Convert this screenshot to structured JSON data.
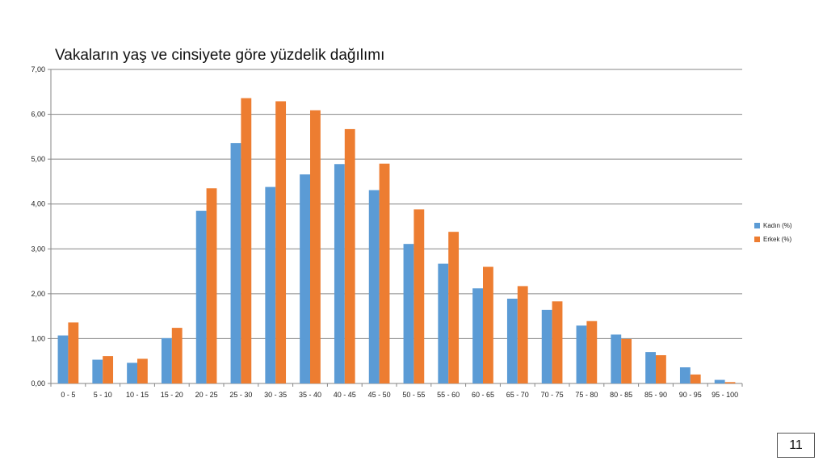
{
  "slide": {
    "page_number": "11"
  },
  "colors": {
    "kadin": "#5B9BD5",
    "erkek": "#ED7D31",
    "grid": "#868686",
    "axis": "#868686"
  },
  "chart_data": {
    "type": "bar",
    "title": "Vakaların yaş ve cinsiyete göre yüzdelik dağılımı",
    "xlabel": "",
    "ylabel": "",
    "ylim": [
      0,
      7
    ],
    "yticks": [
      "0,00",
      "1,00",
      "2,00",
      "3,00",
      "4,00",
      "5,00",
      "6,00",
      "7,00"
    ],
    "grid": true,
    "legend_position": "right",
    "categories": [
      "0 - 5",
      "5 - 10",
      "10 - 15",
      "15 - 20",
      "20 - 25",
      "25 - 30",
      "30 - 35",
      "35 - 40",
      "40 - 45",
      "45 - 50",
      "50 - 55",
      "55 - 60",
      "60 - 65",
      "65 - 70",
      "70 - 75",
      "75 - 80",
      "80 - 85",
      "85 - 90",
      "90 - 95",
      "95 - 100"
    ],
    "series": [
      {
        "name": "Kadın (%)",
        "color": "#5B9BD5",
        "values": [
          1.07,
          0.53,
          0.46,
          1.01,
          3.85,
          5.36,
          4.38,
          4.66,
          4.89,
          4.31,
          3.11,
          2.67,
          2.12,
          1.89,
          1.64,
          1.29,
          1.09,
          0.7,
          0.36,
          0.08
        ]
      },
      {
        "name": "Erkek (%)",
        "color": "#ED7D31",
        "values": [
          1.36,
          0.61,
          0.55,
          1.24,
          4.35,
          6.36,
          6.29,
          6.09,
          5.67,
          4.9,
          3.88,
          3.38,
          2.6,
          2.17,
          1.83,
          1.39,
          0.99,
          0.63,
          0.2,
          0.03
        ]
      }
    ]
  }
}
